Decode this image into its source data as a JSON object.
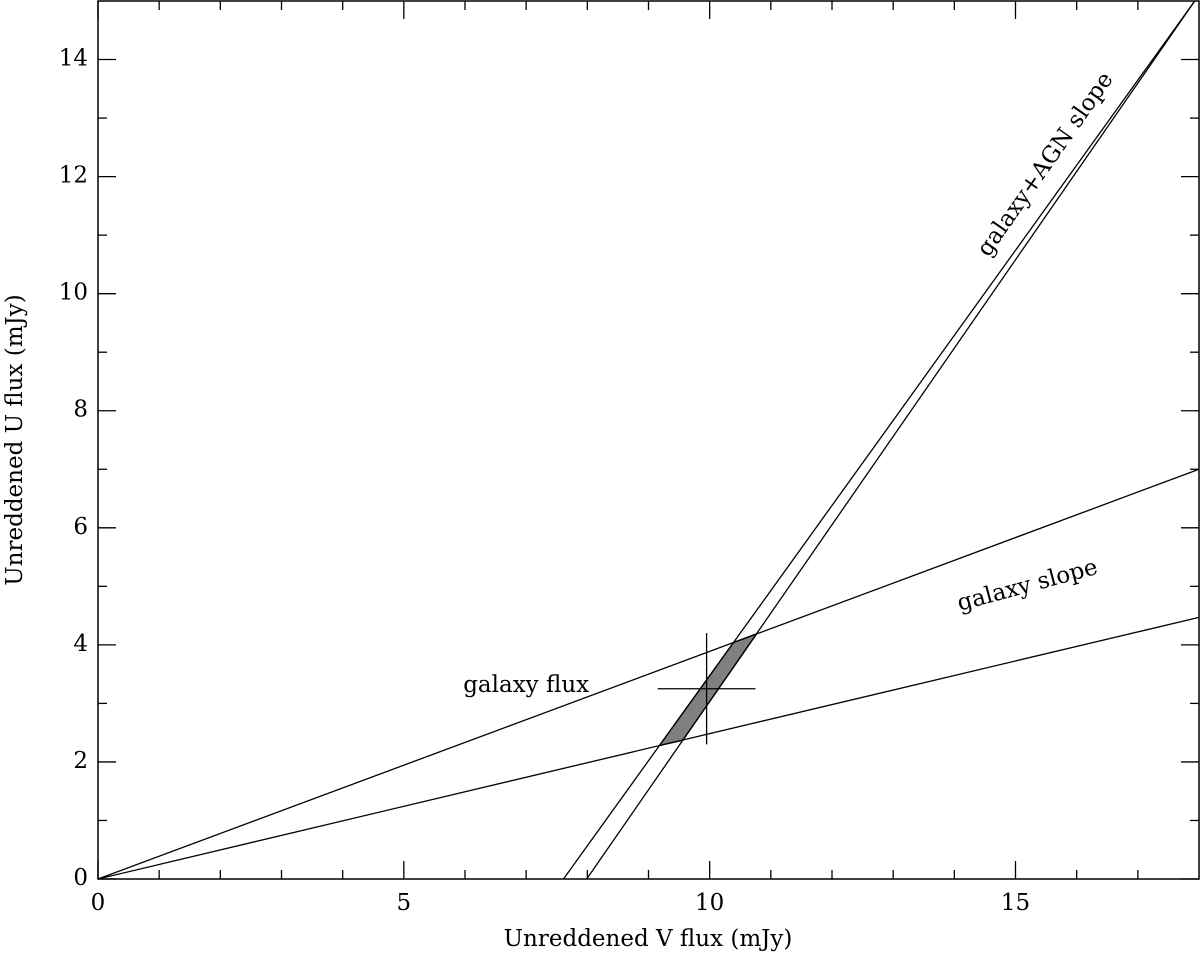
{
  "chart_data": {
    "type": "line",
    "x_label": "Unreddened V flux (mJy)",
    "y_label": "Unreddened U flux (mJy)",
    "xlim": [
      0,
      18
    ],
    "ylim": [
      0,
      15
    ],
    "xticks": [
      0,
      5,
      10,
      15
    ],
    "yticks": [
      0,
      2,
      4,
      6,
      8,
      10,
      12,
      14
    ],
    "xminorticks": [
      1,
      2,
      3,
      4,
      6,
      7,
      8,
      9,
      11,
      12,
      13,
      14,
      16,
      17
    ],
    "yminorticks": [
      1,
      3,
      5,
      7,
      9,
      11,
      13
    ],
    "color": "#000000",
    "series": [
      {
        "x": [
          0,
          18
        ],
        "values": [
          0,
          7.0
        ]
      },
      {
        "x": [
          0,
          18
        ],
        "values": [
          0,
          4.47
        ]
      },
      {
        "x": [
          7.61,
          17.93
        ],
        "values": [
          0,
          15
        ]
      },
      {
        "x": [
          7.99,
          17.93
        ],
        "values": [
          0,
          15
        ]
      }
    ],
    "region": {
      "color": "#808080",
      "x": [
        9.18,
        9.56,
        10.77,
        10.39
      ],
      "values": [
        2.28,
        2.37,
        4.19,
        4.04
      ]
    },
    "point": {
      "x": 9.95,
      "y": 3.25,
      "x_error": 0.8,
      "y_error": 0.95
    },
    "annotations": [
      {
        "text": "galaxy+AGN slope",
        "x": 15.5,
        "y": 12.2,
        "angle": -55
      },
      {
        "text": "galaxy slope",
        "x": 15.2,
        "y": 5.0,
        "angle": -15
      },
      {
        "text": "galaxy flux",
        "x": 7.0,
        "y": 3.3,
        "angle": 0
      }
    ]
  }
}
